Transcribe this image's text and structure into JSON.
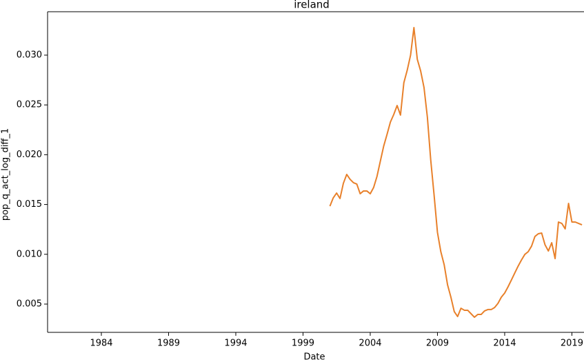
{
  "chart_data": {
    "type": "line",
    "title": "ireland",
    "xlabel": "Date",
    "ylabel": "pop_q_act_log_diff_1",
    "x": [
      2001.0,
      2001.25,
      2001.5,
      2001.75,
      2002.0,
      2002.25,
      2002.5,
      2002.75,
      2003.0,
      2003.25,
      2003.5,
      2003.75,
      2004.0,
      2004.25,
      2004.5,
      2004.75,
      2005.0,
      2005.25,
      2005.5,
      2005.75,
      2006.0,
      2006.25,
      2006.5,
      2006.75,
      2007.0,
      2007.25,
      2007.5,
      2007.75,
      2008.0,
      2008.25,
      2008.5,
      2008.75,
      2009.0,
      2009.25,
      2009.5,
      2009.75,
      2010.0,
      2010.25,
      2010.5,
      2010.75,
      2011.0,
      2011.25,
      2011.5,
      2011.75,
      2012.0,
      2012.25,
      2012.5,
      2012.75,
      2013.0,
      2013.25,
      2013.5,
      2013.75,
      2014.0,
      2014.25,
      2014.5,
      2014.75,
      2015.0,
      2015.25,
      2015.5,
      2015.75,
      2016.0,
      2016.25,
      2016.5,
      2016.75,
      2017.0,
      2017.25,
      2017.5,
      2017.75,
      2018.0,
      2018.25,
      2018.5,
      2018.75,
      2019.0,
      2019.25,
      2019.5,
      2019.75
    ],
    "series": [
      {
        "name": "pop_q_act_log_diff_1",
        "color": "#e8802a",
        "values": [
          0.01483,
          0.01567,
          0.01615,
          0.0156,
          0.01712,
          0.01802,
          0.01753,
          0.01719,
          0.01705,
          0.01608,
          0.01636,
          0.01636,
          0.01608,
          0.0167,
          0.01781,
          0.01934,
          0.02086,
          0.02204,
          0.02328,
          0.02404,
          0.02494,
          0.02398,
          0.02723,
          0.02848,
          0.03,
          0.03277,
          0.02958,
          0.02841,
          0.02675,
          0.02377,
          0.01947,
          0.01594,
          0.0122,
          0.01026,
          0.00895,
          0.00694,
          0.00569,
          0.00424,
          0.00375,
          0.00458,
          0.00438,
          0.00438,
          0.00403,
          0.00368,
          0.00396,
          0.00396,
          0.00431,
          0.00445,
          0.00445,
          0.00465,
          0.00507,
          0.00569,
          0.00611,
          0.00673,
          0.00742,
          0.00812,
          0.00881,
          0.00943,
          0.00999,
          0.01026,
          0.01082,
          0.01179,
          0.01206,
          0.01213,
          0.01096,
          0.01033,
          0.01116,
          0.00957,
          0.01324,
          0.0131,
          0.01255,
          0.01511,
          0.01324,
          0.01324,
          0.0131,
          0.01296
        ]
      }
    ],
    "xlim": [
      1980,
      2019.9
    ],
    "xticks": [
      1984,
      1989,
      1994,
      1999,
      2004,
      2009,
      2014,
      2019
    ],
    "ylim": [
      0.00216,
      0.03436
    ],
    "yticks": [
      0.005,
      {
        "value": 0.01,
        "label": "0.010"
      },
      0.015,
      {
        "value": 0.02,
        "label": "0.020"
      },
      0.025,
      {
        "value": 0.03,
        "label": "0.030"
      }
    ]
  }
}
